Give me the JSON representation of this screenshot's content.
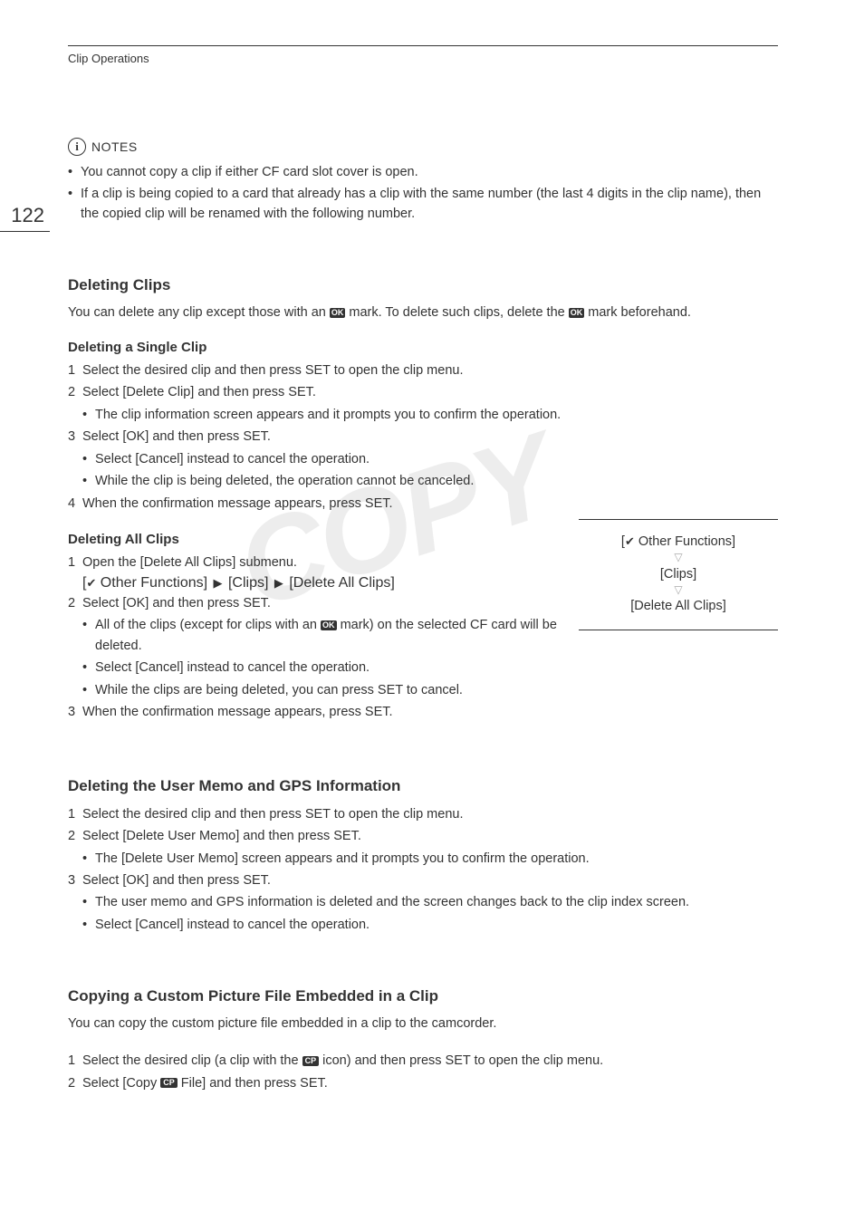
{
  "page_number": "122",
  "header": "Clip Operations",
  "watermark": "COPY",
  "notes": {
    "label": "NOTES",
    "items": [
      "You cannot copy a clip if either CF card slot cover is open.",
      "If a clip is being copied to a card that already has a clip with the same number (the last 4 digits in the clip name), then the copied clip will be renamed with the following number."
    ]
  },
  "deleting_clips": {
    "title": "Deleting Clips",
    "intro_pre": "You can delete any clip except those with an ",
    "intro_mid": " mark. To delete such clips, delete the ",
    "intro_post": " mark beforehand.",
    "single": {
      "title": "Deleting a Single Clip",
      "steps": [
        {
          "n": "1",
          "text": "Select the desired clip and then press SET to open the clip menu."
        },
        {
          "n": "2",
          "text": "Select [Delete Clip] and then press SET.",
          "sub": [
            "The clip information screen appears and it prompts you to confirm the operation."
          ]
        },
        {
          "n": "3",
          "text": "Select [OK] and then press SET.",
          "sub": [
            "Select [Cancel] instead to cancel the operation.",
            "While the clip is being deleted, the operation cannot be canceled."
          ]
        },
        {
          "n": "4",
          "text": "When the confirmation message appears, press SET."
        }
      ]
    },
    "all": {
      "title": "Deleting All Clips",
      "steps": {
        "s1": {
          "n": "1",
          "text": "Open the [Delete All Clips] submenu."
        },
        "path_parts": {
          "a": " Other Functions] ",
          "b": " [Clips] ",
          "c": " [Delete All Clips]"
        },
        "s2": {
          "n": "2",
          "text": "Select [OK] and then press SET.",
          "sub_pre": "All of the clips (except for clips with an ",
          "sub_post": " mark) on the selected CF card will be deleted.",
          "sub2": "Select [Cancel] instead to cancel the operation.",
          "sub3": "While the clips are being deleted, you can press SET to cancel."
        },
        "s3": {
          "n": "3",
          "text": "When the confirmation message appears, press SET."
        }
      },
      "menu": {
        "line1": " Other Functions]",
        "line2": "[Clips]",
        "line3": "[Delete All Clips]"
      }
    }
  },
  "user_memo": {
    "title": "Deleting the User Memo and GPS Information",
    "steps": [
      {
        "n": "1",
        "text": "Select the desired clip and then press SET to open the clip menu."
      },
      {
        "n": "2",
        "text": "Select [Delete User Memo] and then press SET.",
        "sub": [
          "The [Delete User Memo] screen appears and it prompts you to confirm the operation."
        ]
      },
      {
        "n": "3",
        "text": "Select [OK] and then press SET.",
        "sub": [
          "The user memo and GPS information is deleted and the screen changes back to the clip index screen.",
          "Select [Cancel] instead to cancel the operation."
        ]
      }
    ]
  },
  "copy_cp": {
    "title": "Copying a Custom Picture File Embedded in a Clip",
    "intro": "You can copy the custom picture file embedded in a clip to the camcorder.",
    "s1_pre": "Select the desired clip (a clip with the ",
    "s1_post": " icon) and then press SET to open the clip menu.",
    "s2_pre": "Select [Copy ",
    "s2_post": " File] and then press SET."
  },
  "icons": {
    "ok": "OK",
    "cp": "CP"
  }
}
